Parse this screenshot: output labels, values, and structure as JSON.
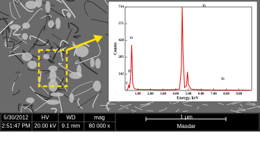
{
  "chart_data": {
    "type": "line",
    "x_label": "Energy, keV",
    "y_label": "Counts",
    "x": [
      0.1,
      0.2,
      0.28,
      0.35,
      0.45,
      0.52,
      0.6,
      0.7,
      0.8,
      1.0,
      1.5,
      2.0,
      2.5,
      3.0,
      3.5,
      4.0,
      4.3,
      4.45,
      4.51,
      4.58,
      4.7,
      4.85,
      4.93,
      5.0,
      5.2,
      5.5,
      6.0,
      7.0,
      8.0,
      9.0,
      9.9
    ],
    "series": [
      {
        "color": "#e00000",
        "values": [
          0,
          10,
          45,
          20,
          150,
          390,
          60,
          20,
          12,
          10,
          8,
          8,
          6,
          6,
          6,
          8,
          12,
          200,
          714,
          300,
          25,
          40,
          160,
          50,
          12,
          8,
          6,
          4,
          4,
          3,
          2
        ]
      }
    ],
    "xlim": [
      0,
      10
    ],
    "ylim": [
      0,
      714
    ],
    "xticks": [
      {
        "value": 1,
        "label": "1.00"
      },
      {
        "value": 2,
        "label": "2.00"
      },
      {
        "value": 3,
        "label": "3.00"
      },
      {
        "value": 4,
        "label": "4.00"
      },
      {
        "value": 5,
        "label": "5.00"
      },
      {
        "value": 6,
        "label": "6.00"
      },
      {
        "value": 7,
        "label": "7.00"
      },
      {
        "value": 8,
        "label": "8.00"
      },
      {
        "value": 9,
        "label": "9.00"
      }
    ],
    "yticks": [
      142,
      285,
      428,
      571,
      714
    ],
    "annotations": [
      "C",
      "O",
      "Ti",
      "Ti",
      "Ti"
    ]
  },
  "info_bar": {
    "date": "5/30/2012",
    "time": "2:51:47 PM",
    "hv_label": "HV",
    "hv": "20.00 kV",
    "wd_label": "WD",
    "wd": "9.1 mm",
    "mag_label": "mag",
    "mag": "80 000 x",
    "scale": "1 μm",
    "lab": "Masdar"
  }
}
